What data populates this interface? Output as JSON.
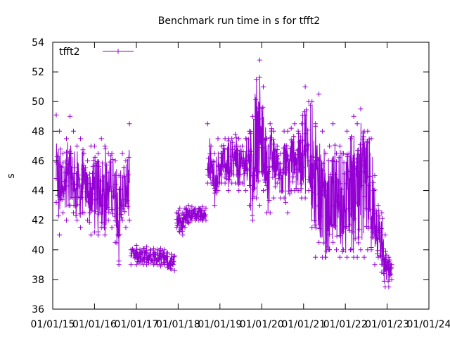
{
  "chart_data": {
    "type": "line",
    "title": "Benchmark run time in s for tfft2",
    "ylabel": "s",
    "xlabel": "",
    "ylim": [
      36,
      54
    ],
    "yticks": [
      36,
      38,
      40,
      42,
      44,
      46,
      48,
      50,
      52,
      54
    ],
    "xlim": [
      "2015-01-01",
      "2024-01-01"
    ],
    "xtick_labels": [
      "01/01/15",
      "01/01/16",
      "01/01/17",
      "01/01/18",
      "01/01/19",
      "01/01/20",
      "01/01/21",
      "01/01/22",
      "01/01/23",
      "01/01/24"
    ],
    "xtick_dates": [
      "2015-01-01",
      "2016-01-01",
      "2017-01-01",
      "2018-01-01",
      "2019-01-01",
      "2020-01-01",
      "2021-01-01",
      "2022-01-01",
      "2023-01-01",
      "2024-01-01"
    ],
    "legend_position": "top-left",
    "grid": false,
    "series": [
      {
        "name": "tfft2",
        "color": "#9400d3",
        "marker": "plus",
        "segments": [
          {
            "x": [
              "2015-02-01",
              "2015-03-01",
              "2015-04-01",
              "2015-05-01",
              "2015-06-01",
              "2015-07-01",
              "2015-08-01",
              "2015-09-01",
              "2015-10-01",
              "2015-11-01",
              "2015-12-01",
              "2016-01-01",
              "2016-02-01",
              "2016-03-01",
              "2016-04-01",
              "2016-05-01",
              "2016-06-01",
              "2016-07-01",
              "2016-08-01",
              "2016-09-01",
              "2016-10-01",
              "2016-11-01"
            ],
            "y_low": [
              43.2,
              41.0,
              42.5,
              42.0,
              43.0,
              42.5,
              42.0,
              41.5,
              42.5,
              42.0,
              41.0,
              41.2,
              41.0,
              41.5,
              41.0,
              42.0,
              41.5,
              40.5,
              39.0,
              42.0,
              41.5,
              42.0
            ],
            "y_high": [
              49.1,
              48.0,
              46.5,
              47.5,
              49.0,
              48.0,
              47.0,
              47.5,
              46.5,
              46.0,
              47.0,
              47.0,
              46.5,
              47.5,
              47.0,
              46.5,
              46.5,
              46.0,
              45.0,
              46.5,
              46.0,
              48.5
            ],
            "y_mid": [
              45.5,
              44.0,
              44.8,
              44.5,
              45.5,
              44.5,
              44.5,
              44.0,
              44.5,
              44.0,
              44.0,
              44.2,
              43.8,
              44.5,
              44.0,
              44.2,
              44.0,
              43.5,
              42.5,
              44.0,
              43.8,
              44.5
            ]
          },
          {
            "x": [
              "2016-11-15",
              "2017-01-01",
              "2017-02-01",
              "2017-03-01",
              "2017-04-01",
              "2017-05-01",
              "2017-06-01",
              "2017-07-01",
              "2017-08-01",
              "2017-09-01",
              "2017-10-01",
              "2017-11-01",
              "2017-12-01"
            ],
            "y_low": [
              39.0,
              39.0,
              39.1,
              39.0,
              39.0,
              39.1,
              39.0,
              39.0,
              38.9,
              39.0,
              38.8,
              38.7,
              38.6
            ],
            "y_high": [
              40.0,
              40.3,
              40.0,
              40.1,
              40.2,
              40.0,
              40.1,
              40.0,
              40.1,
              40.0,
              39.8,
              39.7,
              39.6
            ],
            "y_mid": [
              39.5,
              39.6,
              39.5,
              39.5,
              39.6,
              39.5,
              39.6,
              39.5,
              39.5,
              39.4,
              39.3,
              39.2,
              39.1
            ]
          },
          {
            "x": [
              "2017-12-20",
              "2018-01-15",
              "2018-02-10",
              "2018-03-01",
              "2018-04-01",
              "2018-05-01",
              "2018-06-01",
              "2018-07-01",
              "2018-08-01",
              "2018-09-01"
            ],
            "y_low": [
              41.5,
              41.2,
              41.0,
              41.5,
              41.8,
              42.0,
              42.0,
              42.0,
              42.0,
              42.0
            ],
            "y_high": [
              42.5,
              42.8,
              42.5,
              42.8,
              43.0,
              42.9,
              42.8,
              42.8,
              42.9,
              42.8
            ],
            "y_mid": [
              42.0,
              42.0,
              41.8,
              42.2,
              42.4,
              42.4,
              42.3,
              42.3,
              42.4,
              42.3
            ]
          },
          {
            "x": [
              "2018-09-15",
              "2018-10-15",
              "2018-11-15",
              "2018-12-15",
              "2019-01-15",
              "2019-02-15",
              "2019-03-15",
              "2019-04-15",
              "2019-05-15",
              "2019-06-15",
              "2019-07-15",
              "2019-08-15",
              "2019-09-15",
              "2019-10-15",
              "2019-11-15",
              "2019-12-15",
              "2020-01-15",
              "2020-02-15",
              "2020-03-15",
              "2020-04-15",
              "2020-05-15",
              "2020-06-15",
              "2020-07-15",
              "2020-08-15",
              "2020-09-15",
              "2020-10-15",
              "2020-11-15",
              "2020-12-15",
              "2021-01-15",
              "2021-02-15",
              "2021-03-15",
              "2021-04-15",
              "2021-05-15",
              "2021-06-15",
              "2021-07-15",
              "2021-08-15",
              "2021-09-15",
              "2021-10-15",
              "2021-11-15",
              "2021-12-15",
              "2022-01-15",
              "2022-02-15",
              "2022-03-15",
              "2022-04-15",
              "2022-05-15",
              "2022-06-15",
              "2022-07-15",
              "2022-08-15",
              "2022-09-15",
              "2022-10-15",
              "2022-11-15",
              "2022-12-15",
              "2023-01-15",
              "2023-02-10"
            ],
            "y_low": [
              44.5,
              44.5,
              43.0,
              44.0,
              44.5,
              44.5,
              44.0,
              44.5,
              44.5,
              44.0,
              44.5,
              44.0,
              43.0,
              42.0,
              43.5,
              43.0,
              44.0,
              42.5,
              42.5,
              43.5,
              44.5,
              43.5,
              43.5,
              42.5,
              44.0,
              44.0,
              44.0,
              43.5,
              43.5,
              44.0,
              41.5,
              39.5,
              40.5,
              39.5,
              39.5,
              40.0,
              40.5,
              40.0,
              39.5,
              40.0,
              39.5,
              40.0,
              39.5,
              39.5,
              40.0,
              39.5,
              40.0,
              40.0,
              39.0,
              39.5,
              38.5,
              37.5,
              37.5,
              38.0
            ],
            "y_high": [
              48.5,
              47.0,
              46.5,
              47.5,
              47.0,
              47.5,
              47.5,
              47.5,
              47.8,
              47.5,
              47.0,
              47.5,
              48.0,
              49.0,
              51.5,
              52.8,
              51.0,
              47.5,
              48.5,
              48.0,
              47.0,
              46.5,
              48.0,
              48.0,
              48.2,
              48.5,
              48.0,
              48.5,
              51.0,
              50.0,
              50.0,
              48.5,
              50.5,
              48.0,
              46.5,
              47.0,
              48.5,
              46.5,
              47.0,
              46.5,
              48.0,
              47.5,
              49.0,
              48.5,
              49.5,
              48.0,
              48.0,
              47.5,
              45.0,
              43.0,
              42.5,
              41.0,
              39.5,
              39.0
            ],
            "y_mid": [
              46.0,
              45.5,
              44.8,
              45.5,
              45.8,
              46.0,
              45.8,
              46.0,
              46.2,
              45.8,
              46.0,
              45.8,
              45.5,
              45.5,
              47.0,
              47.5,
              47.0,
              45.5,
              46.0,
              46.0,
              46.0,
              45.0,
              46.0,
              45.5,
              46.2,
              46.5,
              46.0,
              46.0,
              47.0,
              46.5,
              45.5,
              44.0,
              44.5,
              43.5,
              42.5,
              43.0,
              44.0,
              43.0,
              43.0,
              43.0,
              43.5,
              43.5,
              44.0,
              44.0,
              44.5,
              43.5,
              44.0,
              43.5,
              42.0,
              41.0,
              40.0,
              39.0,
              38.5,
              38.5
            ]
          }
        ]
      }
    ]
  }
}
